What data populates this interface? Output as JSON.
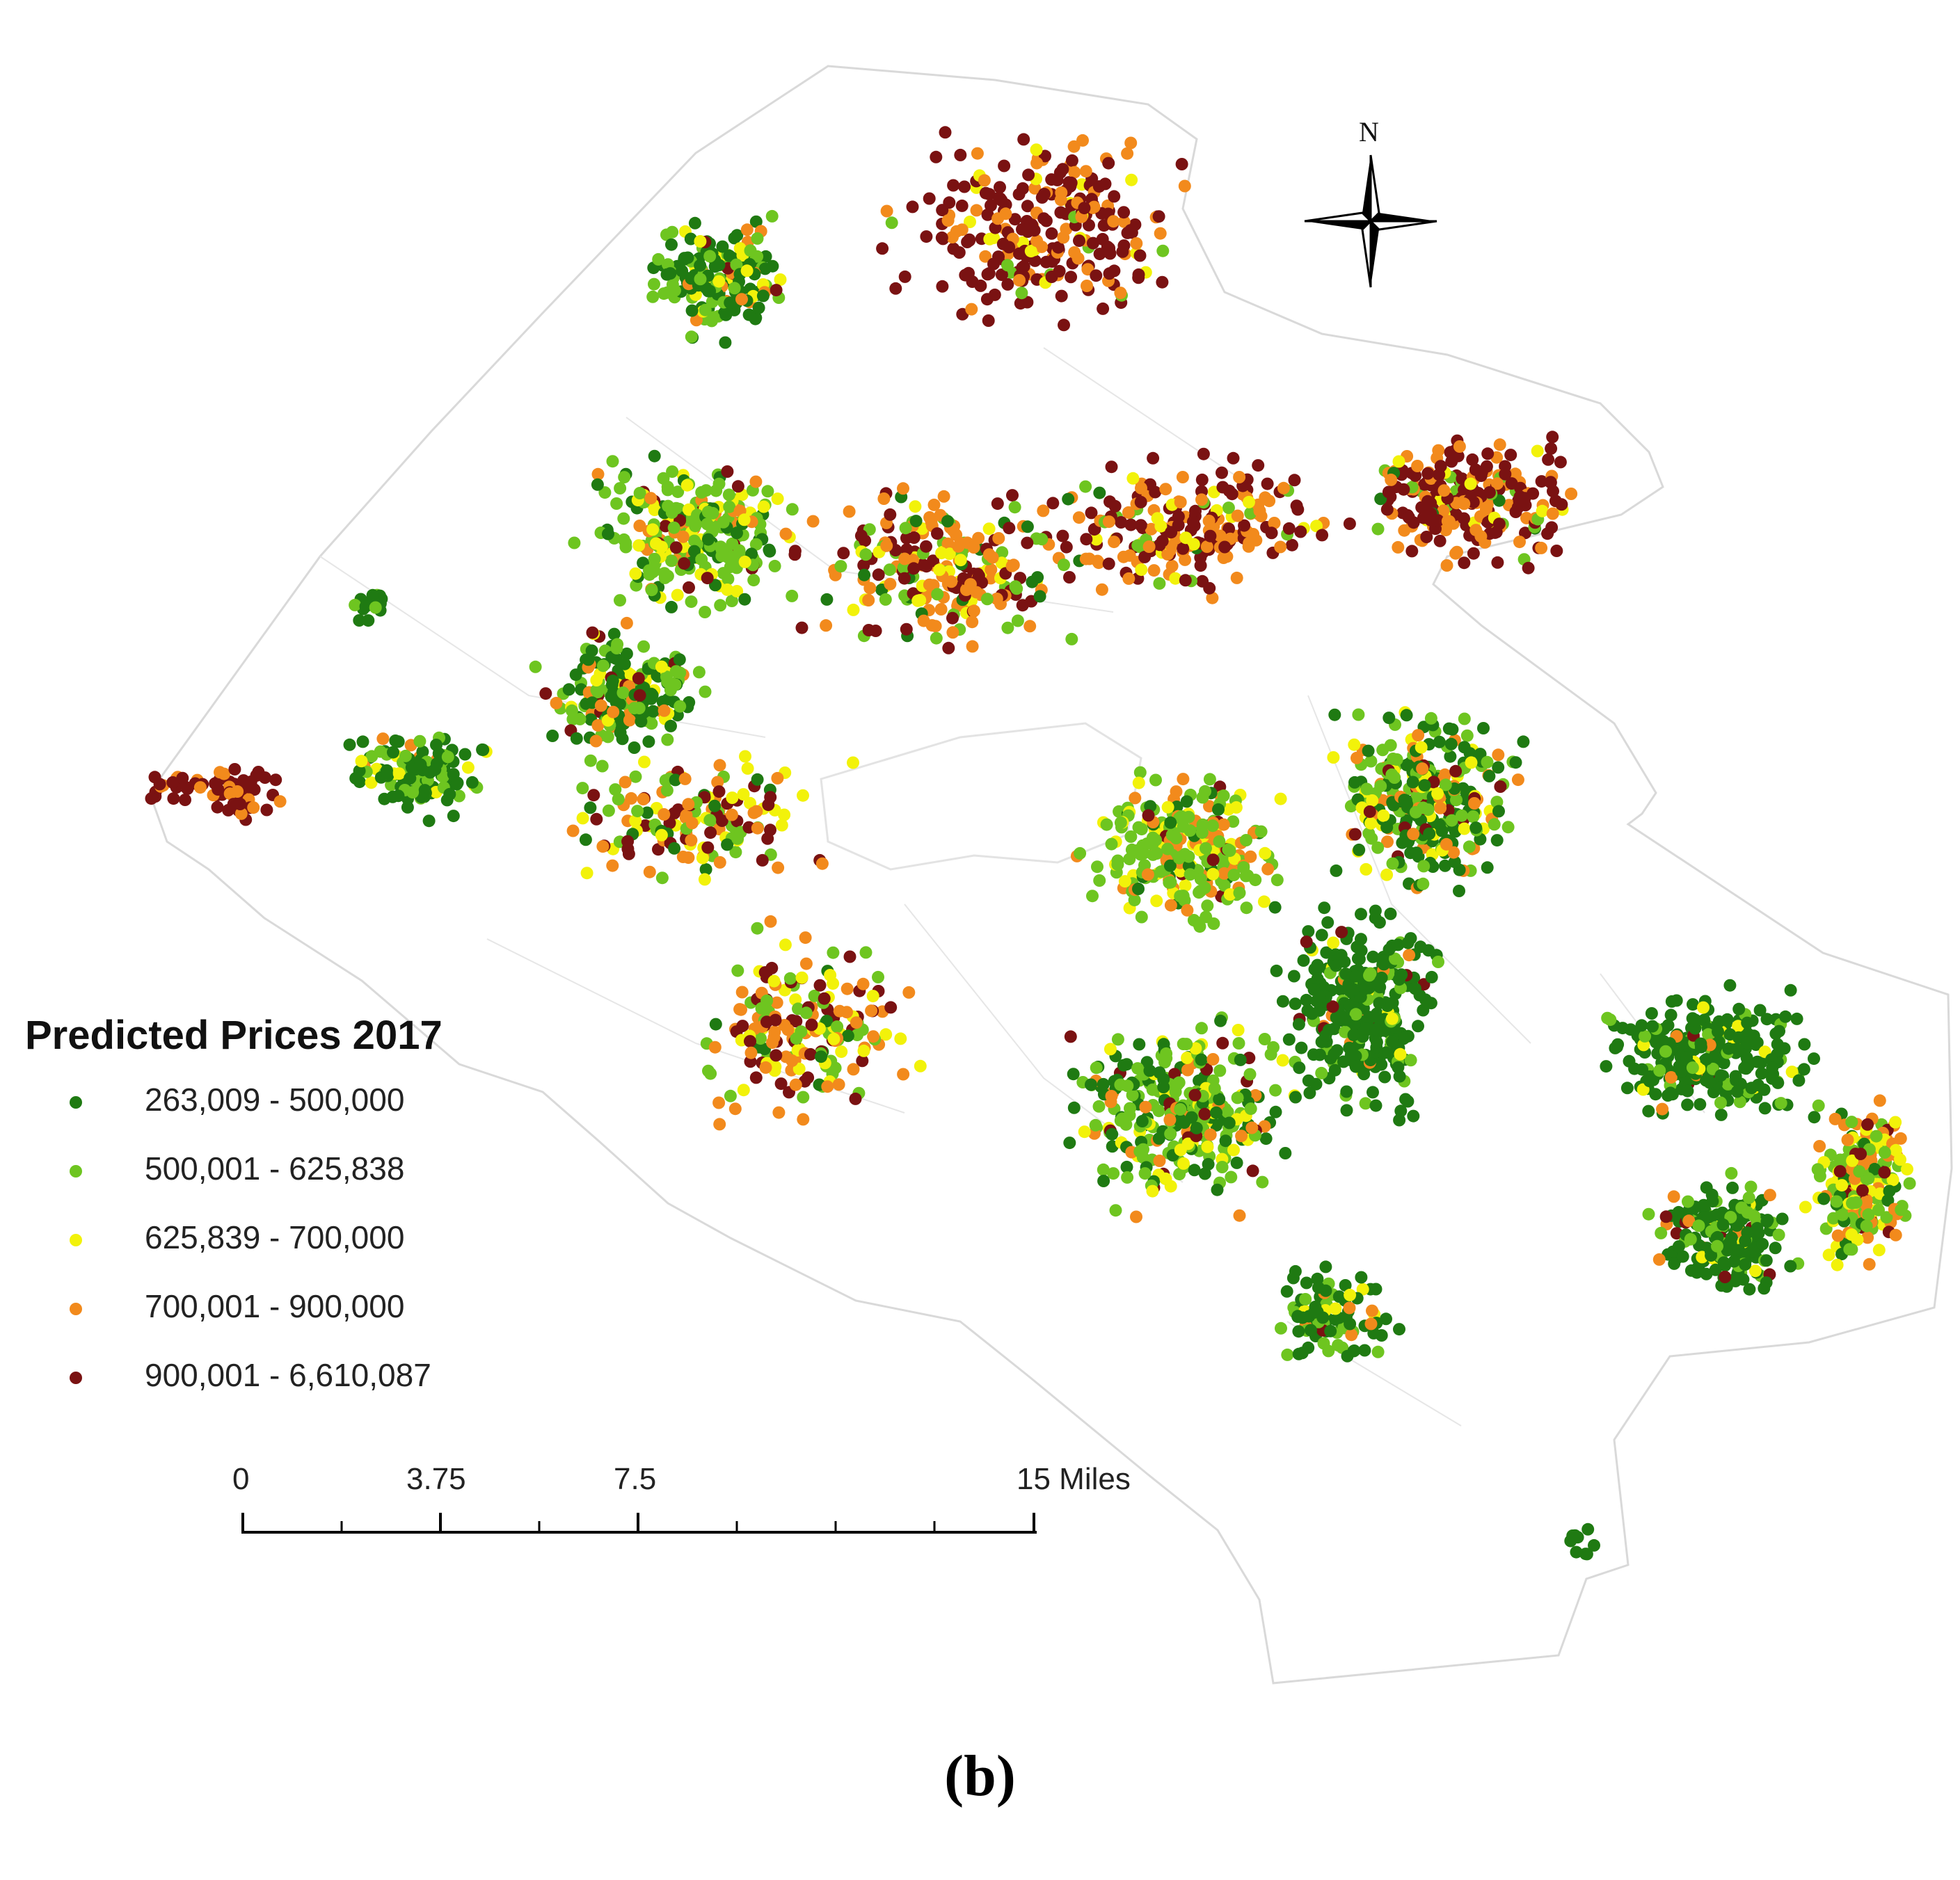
{
  "legend": {
    "title": "Predicted Prices 2017",
    "classes": [
      {
        "label": "263,009 - 500,000",
        "color": "#1f7a12"
      },
      {
        "label": "500,001 - 625,838",
        "color": "#6ec520"
      },
      {
        "label": "625,839 - 700,000",
        "color": "#f2f20a"
      },
      {
        "label": "700,001 - 900,000",
        "color": "#f28a1c"
      },
      {
        "label": "900,001 - 6,610,087",
        "color": "#7a1212"
      }
    ]
  },
  "scale_bar": {
    "labels": [
      "0",
      "3.75",
      "7.5",
      "15 Miles"
    ]
  },
  "north_arrow": {
    "label": "N",
    "icon": "compass-rose-icon"
  },
  "caption": "(b)",
  "colors": {
    "boundary": "#d9d9d9",
    "background": "#ffffff"
  }
}
